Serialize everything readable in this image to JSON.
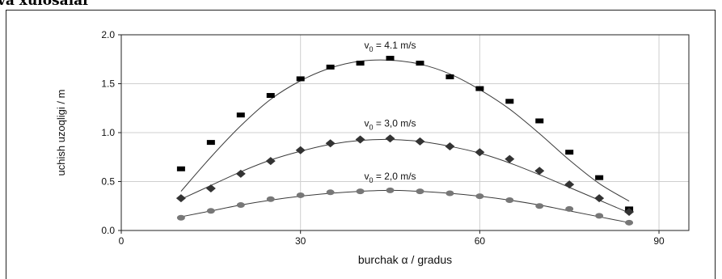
{
  "heading": "va xulosalar",
  "chart_data": {
    "type": "scatter",
    "xlabel": "burchak α / gradus",
    "ylabel": "uchish uzoqligi / m",
    "xlim": [
      0,
      95
    ],
    "ylim": [
      0,
      2.0
    ],
    "xticks": [
      0,
      30,
      60,
      90
    ],
    "yticks": [
      0.0,
      0.5,
      1.0,
      1.5,
      2.0
    ],
    "ytick_labels": [
      "0.0",
      "0.5",
      "1.0",
      "1.5",
      "2.0"
    ],
    "grid": true,
    "series": [
      {
        "name": "v0 = 4.1 m/s",
        "label_sub": "0",
        "label_rest": " = 4.1 m/s",
        "marker": "square",
        "color": "#000000",
        "label_at": [
          45,
          1.86
        ],
        "points": [
          [
            10,
            0.63
          ],
          [
            15,
            0.9
          ],
          [
            20,
            1.18
          ],
          [
            25,
            1.38
          ],
          [
            30,
            1.55
          ],
          [
            35,
            1.67
          ],
          [
            40,
            1.71
          ],
          [
            45,
            1.76
          ],
          [
            50,
            1.71
          ],
          [
            55,
            1.57
          ],
          [
            60,
            1.45
          ],
          [
            65,
            1.32
          ],
          [
            70,
            1.12
          ],
          [
            75,
            0.8
          ],
          [
            80,
            0.54
          ],
          [
            85,
            0.22
          ]
        ],
        "fit": [
          [
            10,
            0.4
          ],
          [
            15,
            0.75
          ],
          [
            20,
            1.07
          ],
          [
            25,
            1.34
          ],
          [
            30,
            1.53
          ],
          [
            35,
            1.66
          ],
          [
            40,
            1.73
          ],
          [
            45,
            1.74
          ],
          [
            50,
            1.7
          ],
          [
            55,
            1.6
          ],
          [
            60,
            1.44
          ],
          [
            65,
            1.24
          ],
          [
            70,
            0.99
          ],
          [
            75,
            0.72
          ],
          [
            80,
            0.48
          ],
          [
            85,
            0.3
          ]
        ]
      },
      {
        "name": "v0 = 3,0 m/s",
        "label_sub": "0",
        "label_rest": " = 3,0 m/s",
        "marker": "diamond",
        "color": "#333333",
        "label_at": [
          45,
          1.06
        ],
        "points": [
          [
            10,
            0.33
          ],
          [
            15,
            0.43
          ],
          [
            20,
            0.58
          ],
          [
            25,
            0.71
          ],
          [
            30,
            0.82
          ],
          [
            35,
            0.89
          ],
          [
            40,
            0.93
          ],
          [
            45,
            0.94
          ],
          [
            50,
            0.91
          ],
          [
            55,
            0.86
          ],
          [
            60,
            0.8
          ],
          [
            65,
            0.73
          ],
          [
            70,
            0.61
          ],
          [
            75,
            0.47
          ],
          [
            80,
            0.33
          ],
          [
            85,
            0.19
          ]
        ],
        "fit": [
          [
            10,
            0.32
          ],
          [
            15,
            0.46
          ],
          [
            20,
            0.6
          ],
          [
            25,
            0.72
          ],
          [
            30,
            0.81
          ],
          [
            35,
            0.88
          ],
          [
            40,
            0.92
          ],
          [
            45,
            0.93
          ],
          [
            50,
            0.91
          ],
          [
            55,
            0.86
          ],
          [
            60,
            0.79
          ],
          [
            65,
            0.69
          ],
          [
            70,
            0.57
          ],
          [
            75,
            0.44
          ],
          [
            80,
            0.31
          ],
          [
            85,
            0.18
          ]
        ]
      },
      {
        "name": "v0 = 2,0 m/s",
        "label_sub": "0",
        "label_rest": " = 2,0 m/s",
        "marker": "circle",
        "color": "#777777",
        "label_at": [
          45,
          0.52
        ],
        "points": [
          [
            10,
            0.13
          ],
          [
            15,
            0.2
          ],
          [
            20,
            0.26
          ],
          [
            25,
            0.32
          ],
          [
            30,
            0.36
          ],
          [
            35,
            0.39
          ],
          [
            40,
            0.4
          ],
          [
            45,
            0.41
          ],
          [
            50,
            0.4
          ],
          [
            55,
            0.38
          ],
          [
            60,
            0.35
          ],
          [
            65,
            0.31
          ],
          [
            70,
            0.25
          ],
          [
            75,
            0.22
          ],
          [
            80,
            0.15
          ],
          [
            85,
            0.08
          ]
        ],
        "fit": [
          [
            10,
            0.14
          ],
          [
            15,
            0.2
          ],
          [
            20,
            0.26
          ],
          [
            25,
            0.31
          ],
          [
            30,
            0.35
          ],
          [
            35,
            0.38
          ],
          [
            40,
            0.4
          ],
          [
            45,
            0.41
          ],
          [
            50,
            0.4
          ],
          [
            55,
            0.38
          ],
          [
            60,
            0.35
          ],
          [
            65,
            0.31
          ],
          [
            70,
            0.26
          ],
          [
            75,
            0.2
          ],
          [
            80,
            0.14
          ],
          [
            85,
            0.08
          ]
        ]
      }
    ]
  }
}
